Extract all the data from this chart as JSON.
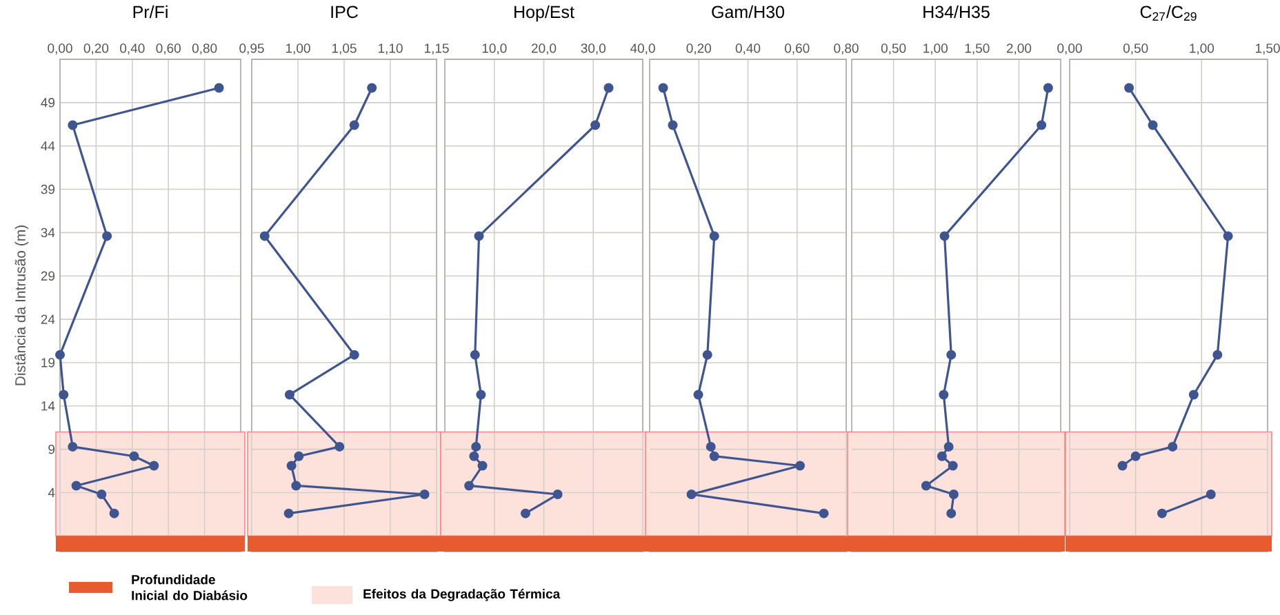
{
  "chart_data": [
    {
      "type": "line",
      "title": "Pr/Fi",
      "ylabel": "Distância da Intrusão (m)",
      "color": "#3f5590",
      "marker": "circle",
      "grid": true,
      "legend": "bottom",
      "x": [
        0.88,
        0.07,
        0.26,
        0.0,
        0.02,
        0.07,
        0.41,
        0.52,
        0.09,
        0.23,
        0.3
      ],
      "values": [
        50.7,
        46.4,
        33.6,
        19.9,
        15.3,
        9.3,
        8.2,
        7.1,
        4.8,
        3.8,
        1.6
      ],
      "xlim": [
        0,
        1
      ],
      "xticks": [
        {
          "value": 0,
          "label": "0,00"
        },
        {
          "value": 0.2,
          "label": "0,20"
        },
        {
          "value": 0.4,
          "label": "0,40"
        },
        {
          "value": 0.6,
          "label": "0,60"
        },
        {
          "value": 0.8,
          "label": "0,80"
        }
      ],
      "ylim": [
        -2.8,
        54
      ],
      "yticks": [
        4,
        9,
        14,
        19,
        24,
        29,
        34,
        39,
        44,
        49
      ],
      "bands": [
        {
          "axis": "y",
          "from": -1,
          "to": 11,
          "label": "Efeitos da Degradação Térmica",
          "color": "#fde2dc"
        }
      ],
      "ref_lines": [
        {
          "axis": "y",
          "value": -1.9,
          "label": "Profundidade Inicial do Diabásio",
          "color": "#e85a30"
        }
      ]
    },
    {
      "type": "line",
      "title": "IPC",
      "color": "#3f5590",
      "marker": "circle",
      "grid": true,
      "tick_labels": "x",
      "x": [
        1.08,
        1.061,
        0.964,
        1.061,
        0.991,
        1.045,
        1.001,
        0.993,
        0.998,
        1.137,
        0.99
      ],
      "values": [
        50.7,
        46.4,
        33.6,
        19.9,
        15.3,
        9.3,
        8.2,
        7.1,
        4.8,
        3.8,
        1.6
      ],
      "xlim": [
        0.95,
        1.15
      ],
      "xticks": [
        {
          "value": 0.95,
          "label": "0,95"
        },
        {
          "value": 1.0,
          "label": "1,00"
        },
        {
          "value": 1.05,
          "label": "1,05"
        },
        {
          "value": 1.1,
          "label": "1,10"
        },
        {
          "value": 1.15,
          "label": "1,15"
        }
      ],
      "ylim": [
        -2.8,
        54
      ],
      "yticks": [
        4,
        9,
        14,
        19,
        24,
        29,
        34,
        39,
        44,
        49
      ],
      "bands": [
        {
          "axis": "y",
          "from": -1,
          "to": 11,
          "color": "#fde2dc"
        }
      ],
      "ref_lines": [
        {
          "axis": "y",
          "value": -1.9,
          "color": "#e85a30"
        }
      ]
    },
    {
      "type": "line",
      "title": "Hop/Est",
      "color": "#3f5590",
      "marker": "circle",
      "grid": true,
      "tick_labels": "x",
      "x": [
        33.1,
        30.4,
        6.9,
        6.1,
        7.3,
        6.3,
        5.9,
        7.6,
        4.9,
        22.8,
        16.3
      ],
      "values": [
        50.7,
        46.4,
        33.6,
        19.9,
        15.3,
        9.3,
        8.2,
        7.1,
        4.8,
        3.8,
        1.6
      ],
      "xlim": [
        0,
        40
      ],
      "xticks": [
        {
          "value": 10,
          "label": "10,0"
        },
        {
          "value": 20,
          "label": "20,0"
        },
        {
          "value": 30,
          "label": "30,0"
        },
        {
          "value": 40,
          "label": "40,0"
        }
      ],
      "ylim": [
        -2.8,
        54
      ],
      "yticks": [
        4,
        9,
        14,
        19,
        24,
        29,
        34,
        39,
        44,
        49
      ],
      "bands": [
        {
          "axis": "y",
          "from": -1,
          "to": 11,
          "color": "#fde2dc"
        }
      ],
      "ref_lines": [
        {
          "axis": "y",
          "value": -1.9,
          "color": "#e85a30"
        }
      ]
    },
    {
      "type": "line",
      "title": "Gam/H30",
      "color": "#3f5590",
      "marker": "circle",
      "grid": true,
      "tick_labels": "x",
      "x": [
        0.055,
        0.094,
        0.263,
        0.235,
        0.198,
        0.249,
        0.263,
        0.612,
        0.17,
        0.709
      ],
      "values": [
        50.7,
        46.4,
        33.6,
        19.9,
        15.3,
        9.3,
        8.2,
        7.1,
        3.8,
        1.6
      ],
      "xlim": [
        0,
        0.8
      ],
      "xticks": [
        {
          "value": 0.2,
          "label": "0,20"
        },
        {
          "value": 0.4,
          "label": "0,40"
        },
        {
          "value": 0.6,
          "label": "0,60"
        },
        {
          "value": 0.8,
          "label": "0,80"
        }
      ],
      "ylim": [
        -2.8,
        54
      ],
      "yticks": [
        4,
        9,
        14,
        19,
        24,
        29,
        34,
        39,
        44,
        49
      ],
      "bands": [
        {
          "axis": "y",
          "from": -1,
          "to": 11,
          "color": "#fde2dc"
        }
      ],
      "ref_lines": [
        {
          "axis": "y",
          "value": -1.9,
          "color": "#e85a30"
        }
      ]
    },
    {
      "type": "line",
      "title": "H34/H35",
      "color": "#3f5590",
      "marker": "circle",
      "grid": true,
      "tick_labels": "x",
      "x": [
        2.35,
        2.27,
        1.11,
        1.19,
        1.1,
        1.16,
        1.08,
        1.21,
        0.89,
        1.22,
        1.19
      ],
      "values": [
        50.7,
        46.4,
        33.6,
        19.9,
        15.3,
        9.3,
        8.2,
        7.1,
        4.8,
        3.8,
        1.6
      ],
      "xlim": [
        0,
        2.5
      ],
      "xticks": [
        {
          "value": 0.5,
          "label": "0,50"
        },
        {
          "value": 1.0,
          "label": "1,00"
        },
        {
          "value": 1.5,
          "label": "1,50"
        },
        {
          "value": 2.0,
          "label": "2,00"
        }
      ],
      "ylim": [
        -2.8,
        54
      ],
      "yticks": [
        4,
        9,
        14,
        19,
        24,
        29,
        34,
        39,
        44,
        49
      ],
      "bands": [
        {
          "axis": "y",
          "from": -1,
          "to": 11,
          "color": "#fde2dc"
        }
      ],
      "ref_lines": [
        {
          "axis": "y",
          "value": -1.9,
          "color": "#e85a30"
        }
      ]
    },
    {
      "type": "line",
      "title": "C$_{27}$/C$_{29}$",
      "color": "#3f5590",
      "marker": "circle",
      "grid": true,
      "tick_labels": "x",
      "x": [
        0.45,
        0.63,
        1.2,
        1.12,
        0.94,
        0.78,
        0.5,
        0.4,
        null,
        1.07,
        0.7
      ],
      "values": [
        50.7,
        46.4,
        33.6,
        19.9,
        15.3,
        9.3,
        8.2,
        7.1,
        null,
        3.8,
        1.6
      ],
      "xlim": [
        0,
        1.5
      ],
      "xticks": [
        {
          "value": 0,
          "label": "0,00"
        },
        {
          "value": 0.5,
          "label": "0,50"
        },
        {
          "value": 1.0,
          "label": "1,00"
        },
        {
          "value": 1.5,
          "label": "1,50"
        }
      ],
      "ylim": [
        -2.8,
        54
      ],
      "yticks": [
        4,
        9,
        14,
        19,
        24,
        29,
        34,
        39,
        44,
        49
      ],
      "bands": [
        {
          "axis": "y",
          "from": -1,
          "to": 11,
          "color": "#fde2dc"
        }
      ],
      "ref_lines": [
        {
          "axis": "y",
          "value": -1.9,
          "color": "#e85a30"
        }
      ]
    }
  ]
}
